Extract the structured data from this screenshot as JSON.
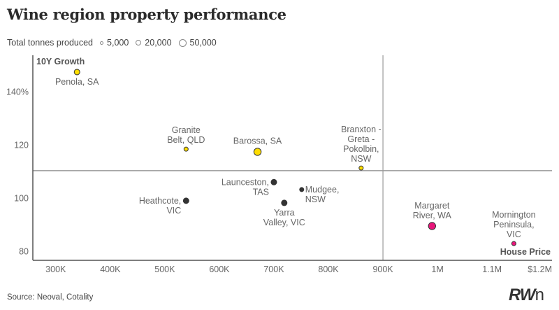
{
  "title": "Wine region property performance",
  "legend": {
    "title": "Total tonnes produced",
    "items": [
      {
        "label": "5,000",
        "tonnes": 5000
      },
      {
        "label": "20,000",
        "tonnes": 20000
      },
      {
        "label": "50,000",
        "tonnes": 50000
      }
    ]
  },
  "source": "Source: Neoval, Cotality",
  "logo": {
    "main": "RW",
    "tail": "n"
  },
  "colors": {
    "yellow": "#ffdd00",
    "dark": "#333333",
    "pink": "#e8157a",
    "axis": "#555555",
    "refline": "#999999",
    "label": "#666666"
  },
  "chart_data": {
    "type": "scatter",
    "title": "Wine region property performance",
    "xlabel": "House Price",
    "ylabel": "10Y Growth",
    "xlim": [
      258000,
      1210000
    ],
    "ylim": [
      76.6,
      153.7
    ],
    "x_ticks": [
      {
        "value": 300000,
        "label": "300K"
      },
      {
        "value": 400000,
        "label": "400K"
      },
      {
        "value": 500000,
        "label": "500K"
      },
      {
        "value": 600000,
        "label": "600K"
      },
      {
        "value": 700000,
        "label": "700K"
      },
      {
        "value": 800000,
        "label": "800K"
      },
      {
        "value": 900000,
        "label": "900K"
      },
      {
        "value": 1000000,
        "label": "1M"
      },
      {
        "value": 1100000,
        "label": "1.1M"
      },
      {
        "value": 1200000,
        "label": "$1.2M"
      }
    ],
    "y_ticks": [
      {
        "value": 140,
        "label": "140%"
      },
      {
        "value": 120,
        "label": "120"
      },
      {
        "value": 100,
        "label": "100"
      },
      {
        "value": 80,
        "label": "80"
      }
    ],
    "reference_lines": {
      "x": 900000,
      "y": 110.3
    },
    "grid": false,
    "legend_position": "top-left",
    "points": [
      {
        "name": "Penola, SA",
        "lines": [
          "Penola, SA"
        ],
        "x": 339000,
        "y": 147.4,
        "size": "medium",
        "group": "yellow",
        "label_pos": "below"
      },
      {
        "name": "Granite Belt, QLD",
        "lines": [
          "Granite",
          "Belt, QLD"
        ],
        "x": 539000,
        "y": 118.4,
        "size": "small",
        "group": "yellow",
        "label_pos": "above"
      },
      {
        "name": "Barossa, SA",
        "lines": [
          "Barossa, SA"
        ],
        "x": 670000,
        "y": 117.4,
        "size": "large",
        "group": "yellow",
        "label_pos": "above"
      },
      {
        "name": "Branxton - Greta - Pokolbin, NSW",
        "lines": [
          "Branxton -",
          "Greta -",
          "Pokolbin,",
          "NSW"
        ],
        "x": 860000,
        "y": 111.3,
        "size": "small",
        "group": "yellow",
        "label_pos": "above"
      },
      {
        "name": "Launceston, TAS",
        "lines": [
          "Launceston,",
          "TAS"
        ],
        "x": 700000,
        "y": 106.0,
        "size": "medium",
        "group": "dark",
        "label_pos": "left"
      },
      {
        "name": "Mudgee, NSW",
        "lines": [
          "Mudgee,",
          "NSW"
        ],
        "x": 751000,
        "y": 103.2,
        "size": "small",
        "group": "dark",
        "label_pos": "right"
      },
      {
        "name": "Yarra Valley, VIC",
        "lines": [
          "Yarra",
          "Valley, VIC"
        ],
        "x": 719000,
        "y": 98.2,
        "size": "medium",
        "group": "dark",
        "label_pos": "below"
      },
      {
        "name": "Heathcote, VIC",
        "lines": [
          "Heathcote,",
          "VIC"
        ],
        "x": 539000,
        "y": 99.0,
        "size": "medium",
        "group": "dark",
        "label_pos": "left"
      },
      {
        "name": "Margaret River, WA",
        "lines": [
          "Margaret",
          "River, WA"
        ],
        "x": 990000,
        "y": 89.5,
        "size": "large",
        "group": "pink",
        "label_pos": "above"
      },
      {
        "name": "Mornington Peninsula, VIC",
        "lines": [
          "Mornington",
          "Peninsula,",
          "VIC"
        ],
        "x": 1140000,
        "y": 82.9,
        "size": "small",
        "group": "pink",
        "label_pos": "above"
      }
    ]
  }
}
